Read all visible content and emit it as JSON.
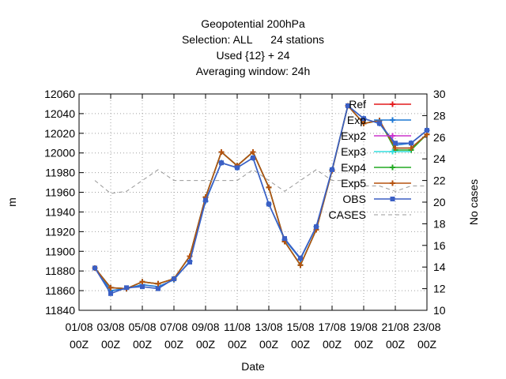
{
  "chart_data": {
    "type": "line",
    "title_lines": [
      "Geopotential 200hPa",
      "Selection: ALL      24 stations",
      "Used {12} + 24",
      "Averaging window: 24h"
    ],
    "xlabel": "Date",
    "ylabel": "m",
    "y2label": "No cases",
    "x_ticks": [
      {
        "label": "01/08",
        "sub": "00Z"
      },
      {
        "label": "03/08",
        "sub": "00Z"
      },
      {
        "label": "05/08",
        "sub": "00Z"
      },
      {
        "label": "07/08",
        "sub": "00Z"
      },
      {
        "label": "09/08",
        "sub": "00Z"
      },
      {
        "label": "11/08",
        "sub": "00Z"
      },
      {
        "label": "13/08",
        "sub": "00Z"
      },
      {
        "label": "15/08",
        "sub": "00Z"
      },
      {
        "label": "17/08",
        "sub": "00Z"
      },
      {
        "label": "19/08",
        "sub": "00Z"
      },
      {
        "label": "21/08",
        "sub": "00Z"
      },
      {
        "label": "23/08",
        "sub": "00Z"
      }
    ],
    "x_dates": [
      "02/08",
      "03/08",
      "04/08",
      "05/08",
      "06/08",
      "07/08",
      "08/08",
      "09/08",
      "10/08",
      "11/08",
      "12/08",
      "13/08",
      "14/08",
      "15/08",
      "16/08",
      "17/08",
      "18/08",
      "19/08",
      "20/08",
      "21/08",
      "22/08",
      "23/08"
    ],
    "ylim": [
      11840,
      12060
    ],
    "yticks": [
      11840,
      11860,
      11880,
      11900,
      11920,
      11940,
      11960,
      11980,
      12000,
      12020,
      12040,
      12060
    ],
    "y2lim": [
      10,
      30
    ],
    "y2ticks": [
      10,
      12,
      14,
      16,
      18,
      20,
      22,
      24,
      26,
      28,
      30
    ],
    "grid": true,
    "legend_position": "top-right",
    "series": [
      {
        "name": "Ref",
        "color": "#e41a1c",
        "marker": "plus",
        "axis": "y1",
        "values": [
          11883,
          11863,
          11862,
          11869,
          11867,
          11872,
          11895,
          11955,
          12001,
          11987,
          12001,
          11965,
          11910,
          11886,
          11922,
          11982,
          12048,
          12030,
          12033,
          12005,
          12005,
          12019
        ]
      },
      {
        "name": "Exp",
        "color": "#1f78d4",
        "marker": "plus",
        "axis": "y1",
        "values": [
          11883,
          11860,
          11862,
          11866,
          11864,
          11871,
          11890,
          11951,
          11990,
          11985,
          11995,
          11948,
          11912,
          11892,
          11925,
          11983,
          12048,
          12035,
          12030,
          12008,
          12010,
          12023
        ]
      },
      {
        "name": "Exp2",
        "color": "#cc33cc",
        "marker": "plus",
        "axis": "y1",
        "values": [
          11883,
          11863,
          11862,
          11869,
          11867,
          11872,
          11895,
          11955,
          12001,
          11987,
          12001,
          11965,
          11910,
          11886,
          11922,
          11982,
          12048,
          12030,
          12033,
          12005,
          12005,
          12019
        ]
      },
      {
        "name": "Exp3",
        "color": "#33dddd",
        "marker": "plus",
        "axis": "y1",
        "values": [
          11883,
          11863,
          11862,
          11869,
          11867,
          11872,
          11895,
          11955,
          12001,
          11987,
          12001,
          11965,
          11910,
          11886,
          11922,
          11982,
          12048,
          12030,
          12033,
          12005,
          12005,
          12019
        ]
      },
      {
        "name": "Exp4",
        "color": "#22aa22",
        "marker": "plus",
        "axis": "y1",
        "values": [
          11883,
          11863,
          11862,
          11869,
          11867,
          11872,
          11895,
          11955,
          12001,
          11987,
          12001,
          11965,
          11910,
          11886,
          11922,
          11982,
          12048,
          12030,
          12033,
          12003,
          12003,
          12019
        ]
      },
      {
        "name": "Exp5",
        "color": "#b5520f",
        "marker": "plus",
        "axis": "y1",
        "values": [
          11883,
          11863,
          11862,
          11869,
          11867,
          11872,
          11895,
          11955,
          12001,
          11987,
          12001,
          11965,
          11910,
          11886,
          11922,
          11982,
          12048,
          12030,
          12033,
          12005,
          12005,
          12019
        ]
      },
      {
        "name": "OBS",
        "color": "#3b5fc4",
        "marker": "square",
        "axis": "y1",
        "values": [
          11883,
          11857,
          11863,
          11864,
          11862,
          11872,
          11889,
          11952,
          11990,
          11985,
          11995,
          11948,
          11913,
          11893,
          11925,
          11983,
          12048,
          12035,
          12030,
          12010,
          12010,
          12023
        ]
      },
      {
        "name": "CASES",
        "color": "#999999",
        "marker": "none",
        "dashed": true,
        "axis": "y2",
        "values": [
          22,
          20.8,
          21,
          22,
          23,
          22,
          22,
          22,
          22,
          22,
          23,
          22,
          21,
          22,
          23,
          22,
          22,
          21.5,
          21.5,
          21,
          21.5,
          21.5
        ]
      }
    ]
  }
}
